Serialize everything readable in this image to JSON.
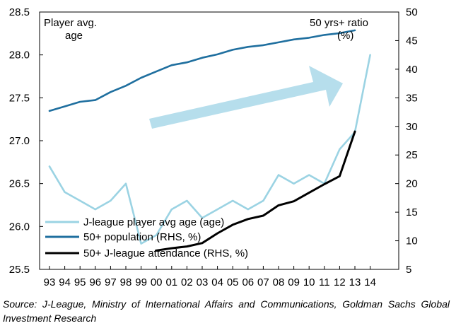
{
  "chart_data": {
    "type": "line",
    "categories": [
      "93",
      "94",
      "95",
      "96",
      "97",
      "98",
      "99",
      "00",
      "01",
      "02",
      "03",
      "04",
      "05",
      "06",
      "07",
      "08",
      "09",
      "10",
      "11",
      "12",
      "13",
      "14"
    ],
    "left_axis": {
      "title": "Player avg. age",
      "min": 25.5,
      "max": 28.5,
      "ticks": [
        "25.5",
        "26.0",
        "26.5",
        "27.0",
        "27.5",
        "28.0",
        "28.5"
      ]
    },
    "right_axis": {
      "title": "50 yrs+ ratio (%)",
      "min": 5,
      "max": 50,
      "ticks": [
        "5",
        "10",
        "15",
        "20",
        "25",
        "30",
        "35",
        "40",
        "45",
        "50"
      ]
    },
    "series": [
      {
        "name": "J-league player avg age (age)",
        "axis": "left",
        "color": "#9bd3e3",
        "values": [
          26.7,
          26.4,
          26.3,
          26.2,
          26.3,
          26.5,
          25.8,
          25.9,
          26.2,
          26.3,
          26.1,
          26.2,
          26.3,
          26.2,
          26.3,
          26.6,
          26.5,
          26.6,
          26.5,
          26.9,
          27.1,
          28.0
        ]
      },
      {
        "name": "50+ population (RHS, %)",
        "axis": "right",
        "color": "#1f6f9f",
        "values": [
          32.7,
          33.5,
          34.3,
          34.6,
          36.0,
          37.1,
          38.5,
          39.6,
          40.7,
          41.2,
          42.0,
          42.6,
          43.4,
          43.9,
          44.2,
          44.7,
          45.2,
          45.5,
          46.0,
          46.3,
          46.8,
          null
        ]
      },
      {
        "name": "50+ J-league attendance (RHS, %)",
        "axis": "right",
        "color": "#000000",
        "values": [
          null,
          null,
          null,
          null,
          null,
          null,
          null,
          8.3,
          8.7,
          9.0,
          9.6,
          11.3,
          12.8,
          13.8,
          14.4,
          16.2,
          16.9,
          18.4,
          19.9,
          21.3,
          29.1,
          null
        ]
      }
    ],
    "trend_arrow": "light blue arrow pointing up-right"
  },
  "source": "Source: J-League, Ministry of International Affairs and Communications, Goldman Sachs Global Investment Research"
}
